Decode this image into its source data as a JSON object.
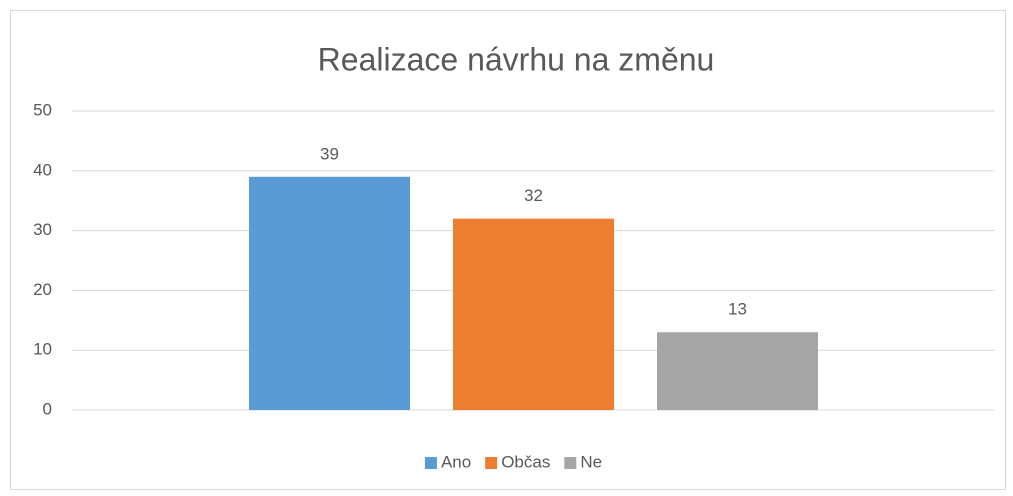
{
  "chart_data": {
    "type": "bar",
    "title": "Realizace návrhu na změnu",
    "categories": [
      null
    ],
    "series": [
      {
        "name": "Ano",
        "color": "#5b9bd5",
        "values": [
          39
        ]
      },
      {
        "name": "Občas",
        "color": "#ed7d31",
        "values": [
          32
        ]
      },
      {
        "name": "Ne",
        "color": "#a5a5a5",
        "values": [
          13
        ]
      }
    ],
    "ylim": [
      0,
      50
    ],
    "yticks": [
      0,
      10,
      20,
      30,
      40,
      50
    ],
    "grid": true,
    "legend": "bottom"
  }
}
